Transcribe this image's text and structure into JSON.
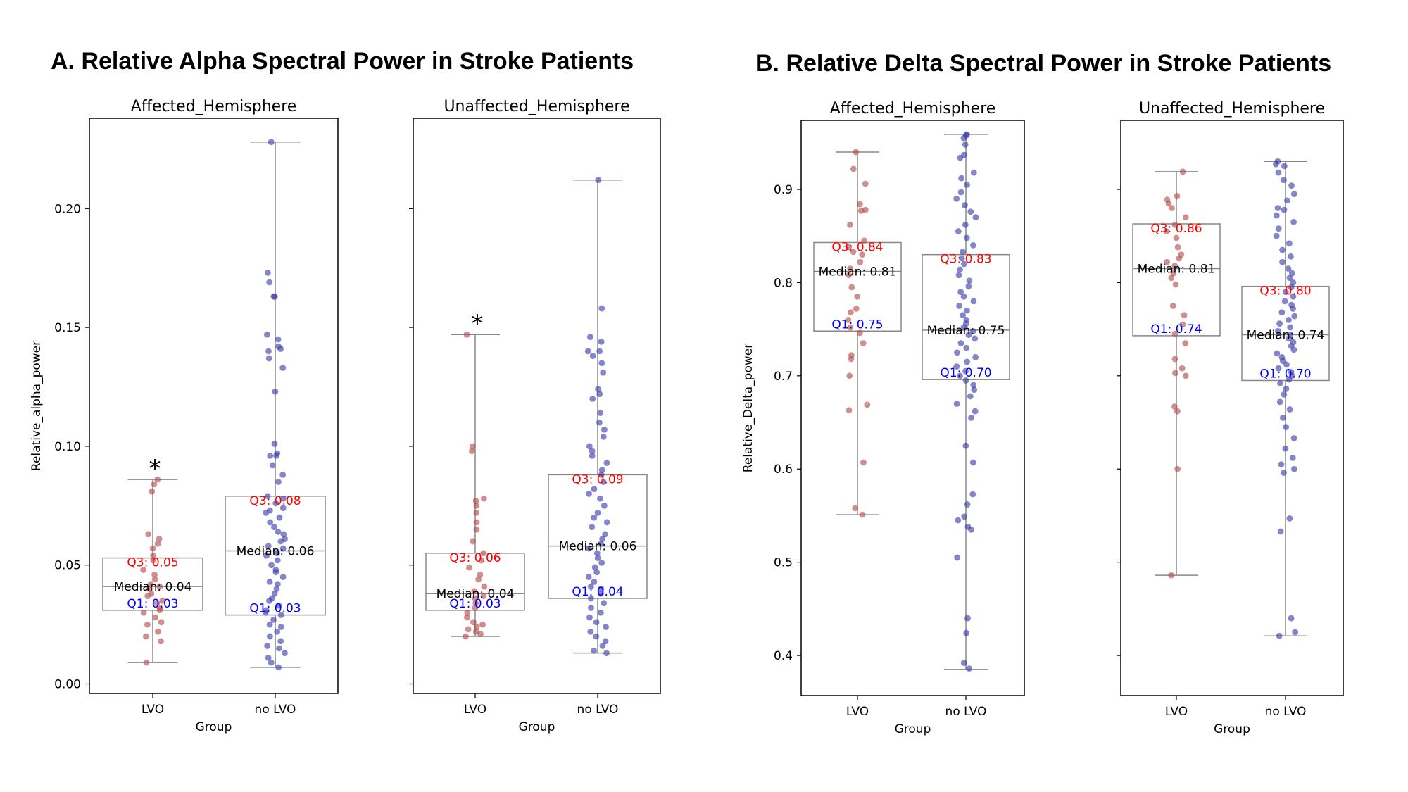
{
  "figure_titles": {
    "a": "A. Relative Alpha Spectral Power in Stroke Patients",
    "b": "B. Relative Delta Spectral Power in Stroke Patients"
  },
  "colors": {
    "lvo": "#b04a4a",
    "no_lvo": "#3a3aa8",
    "q3": "#ff0000",
    "median": "#000000",
    "q1": "#0000ff",
    "box": "#888888"
  },
  "chart_data": [
    {
      "type": "box-strip",
      "title": "Affected_Hemisphere",
      "xlabel": "Group",
      "ylabel": "Relative_alpha_power",
      "ylim": [
        -0.004,
        0.238
      ],
      "yticks": [
        0.0,
        0.05,
        0.1,
        0.15,
        0.2
      ],
      "ytick_labels": [
        "0.00",
        "0.05",
        "0.10",
        "0.15",
        "0.20"
      ],
      "categories": [
        "LVO",
        "no LVO"
      ],
      "significance": "*",
      "boxes": [
        {
          "q1": 0.031,
          "median": 0.041,
          "q3": 0.053,
          "whisker_low": 0.009,
          "whisker_high": 0.086,
          "q3_label": "Q3: 0.05",
          "median_label": "Median: 0.04",
          "q1_label": "Q1: 0.03",
          "points": [
            0.086,
            0.084,
            0.081,
            0.063,
            0.061,
            0.059,
            0.057,
            0.054,
            0.052,
            0.048,
            0.046,
            0.044,
            0.042,
            0.041,
            0.04,
            0.038,
            0.037,
            0.035,
            0.034,
            0.032,
            0.031,
            0.03,
            0.028,
            0.026,
            0.025,
            0.022,
            0.02,
            0.018,
            0.009
          ]
        },
        {
          "q1": 0.029,
          "median": 0.056,
          "q3": 0.079,
          "whisker_low": 0.007,
          "whisker_high": 0.228,
          "q3_label": "Q3: 0.08",
          "median_label": "Median: 0.06",
          "q1_label": "Q1: 0.03",
          "points": [
            0.228,
            0.173,
            0.169,
            0.163,
            0.163,
            0.147,
            0.145,
            0.142,
            0.141,
            0.14,
            0.137,
            0.133,
            0.123,
            0.101,
            0.097,
            0.096,
            0.096,
            0.092,
            0.088,
            0.085,
            0.079,
            0.078,
            0.076,
            0.074,
            0.073,
            0.072,
            0.07,
            0.068,
            0.066,
            0.064,
            0.063,
            0.061,
            0.06,
            0.058,
            0.057,
            0.055,
            0.054,
            0.052,
            0.05,
            0.048,
            0.047,
            0.045,
            0.043,
            0.042,
            0.04,
            0.038,
            0.036,
            0.035,
            0.033,
            0.031,
            0.03,
            0.029,
            0.027,
            0.025,
            0.024,
            0.022,
            0.02,
            0.018,
            0.016,
            0.015,
            0.013,
            0.011,
            0.009,
            0.007
          ]
        }
      ]
    },
    {
      "type": "box-strip",
      "title": "Unaffected_Hemisphere",
      "xlabel": "Group",
      "ylabel": "",
      "ylim": [
        -0.004,
        0.238
      ],
      "yticks": [
        0.0,
        0.05,
        0.1,
        0.15,
        0.2
      ],
      "ytick_labels": [],
      "categories": [
        "LVO",
        "no LVO"
      ],
      "significance": "*",
      "boxes": [
        {
          "q1": 0.031,
          "median": 0.038,
          "q3": 0.055,
          "whisker_low": 0.02,
          "whisker_high": 0.147,
          "q3_label": "Q3: 0.06",
          "median_label": "Median: 0.04",
          "q1_label": "Q1: 0.03",
          "points": [
            0.147,
            0.1,
            0.098,
            0.078,
            0.077,
            0.075,
            0.072,
            0.068,
            0.065,
            0.06,
            0.055,
            0.052,
            0.049,
            0.046,
            0.044,
            0.041,
            0.039,
            0.037,
            0.036,
            0.034,
            0.032,
            0.03,
            0.028,
            0.026,
            0.025,
            0.024,
            0.023,
            0.022,
            0.021,
            0.02
          ]
        },
        {
          "q1": 0.036,
          "median": 0.058,
          "q3": 0.088,
          "whisker_low": 0.013,
          "whisker_high": 0.212,
          "q3_label": "Q3: 0.09",
          "median_label": "Median: 0.06",
          "q1_label": "Q1: 0.04",
          "points": [
            0.212,
            0.158,
            0.146,
            0.144,
            0.14,
            0.14,
            0.138,
            0.135,
            0.131,
            0.124,
            0.122,
            0.12,
            0.114,
            0.11,
            0.107,
            0.104,
            0.1,
            0.098,
            0.096,
            0.093,
            0.09,
            0.088,
            0.085,
            0.082,
            0.08,
            0.078,
            0.075,
            0.072,
            0.07,
            0.068,
            0.066,
            0.063,
            0.061,
            0.059,
            0.057,
            0.055,
            0.053,
            0.051,
            0.049,
            0.047,
            0.045,
            0.043,
            0.041,
            0.04,
            0.038,
            0.036,
            0.034,
            0.032,
            0.03,
            0.028,
            0.026,
            0.024,
            0.022,
            0.02,
            0.018,
            0.016,
            0.014,
            0.013
          ]
        }
      ]
    },
    {
      "type": "box-strip",
      "title": "Affected_Hemisphere",
      "xlabel": "Group",
      "ylabel": "Relative_Delta_power",
      "ylim": [
        0.357,
        0.974
      ],
      "yticks": [
        0.4,
        0.5,
        0.6,
        0.7,
        0.8,
        0.9
      ],
      "ytick_labels": [
        "0.4",
        "0.5",
        "0.6",
        "0.7",
        "0.8",
        "0.9"
      ],
      "categories": [
        "LVO",
        "no LVO"
      ],
      "significance": "",
      "boxes": [
        {
          "q1": 0.748,
          "median": 0.812,
          "q3": 0.843,
          "whisker_low": 0.551,
          "whisker_high": 0.94,
          "q3_label": "Q3: 0.84",
          "median_label": "Median: 0.81",
          "q1_label": "Q1: 0.75",
          "points": [
            0.94,
            0.922,
            0.906,
            0.884,
            0.878,
            0.877,
            0.862,
            0.845,
            0.838,
            0.833,
            0.83,
            0.822,
            0.815,
            0.808,
            0.795,
            0.785,
            0.772,
            0.768,
            0.76,
            0.752,
            0.746,
            0.735,
            0.722,
            0.718,
            0.7,
            0.669,
            0.663,
            0.607,
            0.558,
            0.551
          ]
        },
        {
          "q1": 0.696,
          "median": 0.749,
          "q3": 0.83,
          "whisker_low": 0.385,
          "whisker_high": 0.959,
          "q3_label": "Q3: 0.83",
          "median_label": "Median: 0.75",
          "q1_label": "Q1: 0.70",
          "points": [
            0.959,
            0.958,
            0.955,
            0.948,
            0.937,
            0.934,
            0.918,
            0.912,
            0.905,
            0.897,
            0.89,
            0.883,
            0.876,
            0.87,
            0.862,
            0.855,
            0.848,
            0.84,
            0.833,
            0.826,
            0.82,
            0.814,
            0.808,
            0.802,
            0.796,
            0.79,
            0.785,
            0.78,
            0.775,
            0.77,
            0.765,
            0.76,
            0.756,
            0.752,
            0.748,
            0.744,
            0.74,
            0.735,
            0.73,
            0.725,
            0.72,
            0.715,
            0.71,
            0.705,
            0.7,
            0.695,
            0.69,
            0.685,
            0.678,
            0.67,
            0.662,
            0.655,
            0.625,
            0.607,
            0.573,
            0.562,
            0.549,
            0.545,
            0.538,
            0.535,
            0.505,
            0.44,
            0.424,
            0.392,
            0.386
          ]
        }
      ]
    },
    {
      "type": "box-strip",
      "title": "Unaffected_Hemisphere",
      "xlabel": "Group",
      "ylabel": "",
      "ylim": [
        0.357,
        0.974
      ],
      "yticks": [
        0.4,
        0.5,
        0.6,
        0.7,
        0.8,
        0.9
      ],
      "ytick_labels": [],
      "categories": [
        "LVO",
        "no LVO"
      ],
      "significance": "",
      "boxes": [
        {
          "q1": 0.743,
          "median": 0.815,
          "q3": 0.863,
          "whisker_low": 0.486,
          "whisker_high": 0.919,
          "q3_label": "Q3: 0.86",
          "median_label": "Median: 0.81",
          "q1_label": "Q1: 0.74",
          "points": [
            0.919,
            0.893,
            0.889,
            0.885,
            0.88,
            0.87,
            0.862,
            0.855,
            0.848,
            0.838,
            0.83,
            0.826,
            0.822,
            0.818,
            0.81,
            0.805,
            0.798,
            0.775,
            0.765,
            0.755,
            0.745,
            0.735,
            0.718,
            0.708,
            0.703,
            0.7,
            0.667,
            0.662,
            0.6,
            0.486
          ]
        },
        {
          "q1": 0.695,
          "median": 0.744,
          "q3": 0.796,
          "whisker_low": 0.421,
          "whisker_high": 0.93,
          "q3_label": "Q3: 0.80",
          "median_label": "Median: 0.74",
          "q1_label": "Q1: 0.70",
          "points": [
            0.93,
            0.927,
            0.925,
            0.918,
            0.91,
            0.904,
            0.895,
            0.888,
            0.88,
            0.878,
            0.872,
            0.865,
            0.858,
            0.85,
            0.842,
            0.835,
            0.828,
            0.822,
            0.815,
            0.81,
            0.805,
            0.8,
            0.795,
            0.79,
            0.785,
            0.78,
            0.776,
            0.772,
            0.768,
            0.764,
            0.76,
            0.756,
            0.752,
            0.748,
            0.744,
            0.74,
            0.736,
            0.732,
            0.728,
            0.724,
            0.72,
            0.716,
            0.712,
            0.708,
            0.704,
            0.7,
            0.696,
            0.692,
            0.686,
            0.68,
            0.672,
            0.664,
            0.655,
            0.645,
            0.633,
            0.622,
            0.612,
            0.605,
            0.6,
            0.596,
            0.547,
            0.533,
            0.44,
            0.425,
            0.421
          ]
        }
      ]
    }
  ]
}
